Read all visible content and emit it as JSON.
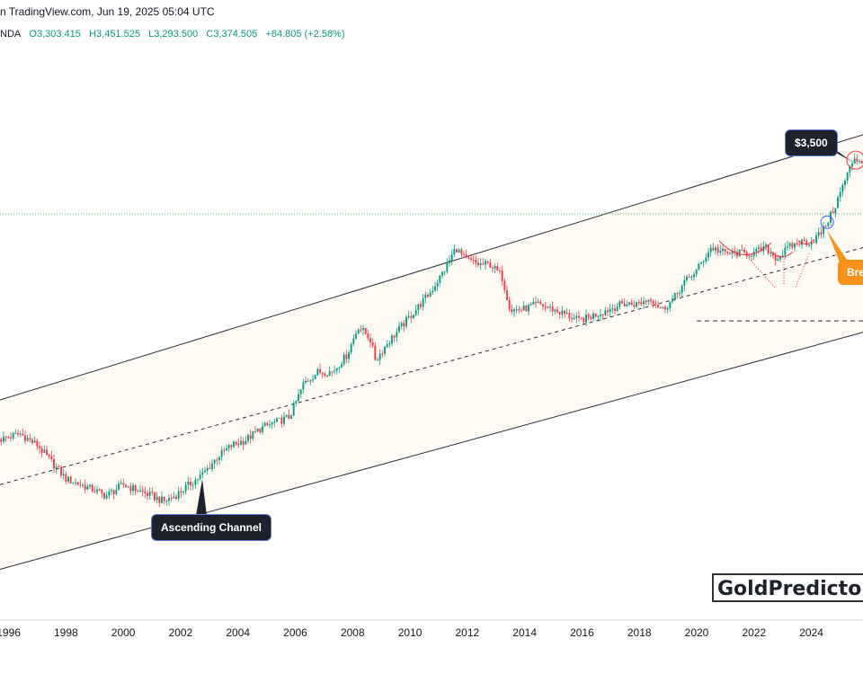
{
  "header": {
    "line1": "n TradingView.com, Jun 19, 2025 05:04 UTC",
    "symbol": "NDA",
    "open": "O3,303.415",
    "high": "H3,451.525",
    "low": "L3,293.500",
    "close": "C3,374.505",
    "change": "+84.805 (+2.58%)"
  },
  "annotations": {
    "ascending_channel": "Ascending Channel",
    "price_target": "$3,500",
    "breakout": "Brea"
  },
  "watermark": "GoldPredictors.c",
  "colors": {
    "up": "#089981",
    "down": "#f23645",
    "channel_fill": "#fdfaf3",
    "channel_line": "#2a2e39",
    "dotted_level": "#4caf50",
    "callout_dark": "#1e222d",
    "callout_orange": "#f7931a"
  },
  "chart_data": {
    "type": "candlestick",
    "title": "",
    "xlabel": "",
    "ylabel": "",
    "x_ticks": [
      "1996",
      "1998",
      "2000",
      "2002",
      "2004",
      "2006",
      "2008",
      "2010",
      "2012",
      "2014",
      "2016",
      "2018",
      "2020",
      "2022",
      "2024"
    ],
    "x_range": [
      1995.7,
      2025.8
    ],
    "y_range": [
      0,
      100
    ],
    "grid": false,
    "channel": {
      "lower": [
        [
          1995.7,
          9
        ],
        [
          2025.8,
          51
        ]
      ],
      "upper": [
        [
          1995.7,
          39
        ],
        [
          2025.8,
          86
        ]
      ],
      "middle": [
        [
          1995.7,
          24
        ],
        [
          2025.8,
          66
        ]
      ]
    },
    "resistance_level_2020": 53,
    "dotted_level_3500": 72,
    "path": [
      [
        1995.7,
        32
      ],
      [
        1996.4,
        33
      ],
      [
        1997.0,
        31
      ],
      [
        1997.5,
        28
      ],
      [
        1998.0,
        25
      ],
      [
        1998.5,
        24
      ],
      [
        1999.0,
        23
      ],
      [
        1999.4,
        22
      ],
      [
        1999.7,
        23
      ],
      [
        2000.0,
        24
      ],
      [
        2000.5,
        23
      ],
      [
        2001.0,
        22
      ],
      [
        2001.4,
        21
      ],
      [
        2001.8,
        22
      ],
      [
        2002.3,
        24
      ],
      [
        2002.8,
        26
      ],
      [
        2003.3,
        29
      ],
      [
        2003.8,
        31
      ],
      [
        2004.3,
        32
      ],
      [
        2004.8,
        34
      ],
      [
        2005.3,
        35
      ],
      [
        2005.8,
        36
      ],
      [
        2006.3,
        42
      ],
      [
        2006.8,
        44
      ],
      [
        2007.3,
        44
      ],
      [
        2007.8,
        47
      ],
      [
        2008.2,
        52
      ],
      [
        2008.6,
        50
      ],
      [
        2008.8,
        46
      ],
      [
        2009.2,
        49
      ],
      [
        2009.7,
        52
      ],
      [
        2010.2,
        55
      ],
      [
        2010.7,
        58
      ],
      [
        2011.2,
        62
      ],
      [
        2011.6,
        66
      ],
      [
        2011.9,
        64
      ],
      [
        2012.4,
        63
      ],
      [
        2012.8,
        63
      ],
      [
        2013.2,
        61
      ],
      [
        2013.5,
        55
      ],
      [
        2013.9,
        55
      ],
      [
        2014.5,
        56
      ],
      [
        2015.0,
        55
      ],
      [
        2015.5,
        54
      ],
      [
        2015.9,
        53
      ],
      [
        2016.4,
        54
      ],
      [
        2016.9,
        55
      ],
      [
        2017.4,
        56
      ],
      [
        2017.9,
        56
      ],
      [
        2018.4,
        57
      ],
      [
        2018.8,
        55
      ],
      [
        2019.2,
        57
      ],
      [
        2019.6,
        60
      ],
      [
        2020.0,
        62
      ],
      [
        2020.5,
        66
      ],
      [
        2021.0,
        65
      ],
      [
        2021.5,
        65
      ],
      [
        2022.0,
        65
      ],
      [
        2022.4,
        66
      ],
      [
        2022.8,
        64
      ],
      [
        2023.2,
        66
      ],
      [
        2023.6,
        67
      ],
      [
        2024.0,
        67
      ],
      [
        2024.4,
        69
      ],
      [
        2024.8,
        73
      ],
      [
        2025.1,
        77
      ],
      [
        2025.5,
        82
      ],
      [
        2025.8,
        81
      ]
    ],
    "count": 360
  }
}
